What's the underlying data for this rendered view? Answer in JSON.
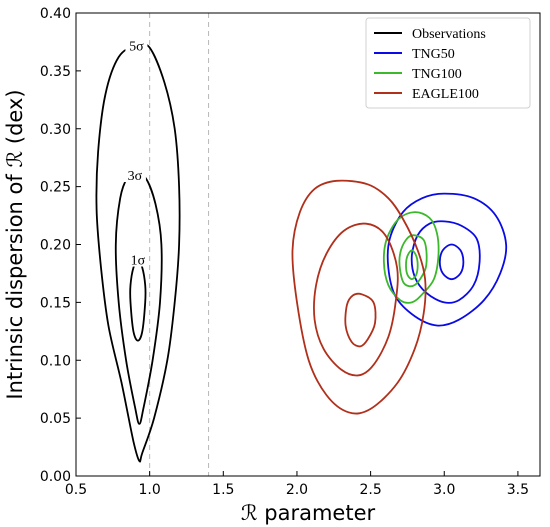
{
  "chart_data": {
    "type": "contour",
    "xlabel": "ℛ parameter",
    "ylabel": "Intrinsic dispersion of ℛ (dex)",
    "xlim": [
      0.5,
      3.65
    ],
    "ylim": [
      0.0,
      0.4
    ],
    "xticks": [
      "0.5",
      "1.0",
      "1.5",
      "2.0",
      "2.5",
      "3.0",
      "3.5"
    ],
    "yticks": [
      "0.00",
      "0.05",
      "0.10",
      "0.15",
      "0.20",
      "0.25",
      "0.30",
      "0.35",
      "0.40"
    ],
    "grid": false,
    "legend_position": "top-right",
    "reference_lines_x": [
      1.0,
      1.4
    ],
    "series": [
      {
        "name": "Observations",
        "color": "#000000",
        "contours": [
          {
            "level": "1σ",
            "label": "1σ",
            "center": [
              0.92,
              0.152
            ],
            "points": [
              [
                0.92,
                0.187
              ],
              [
                0.95,
                0.18
              ],
              [
                0.97,
                0.165
              ],
              [
                0.97,
                0.15
              ],
              [
                0.95,
                0.125
              ],
              [
                0.92,
                0.117
              ],
              [
                0.89,
                0.125
              ],
              [
                0.87,
                0.15
              ],
              [
                0.87,
                0.165
              ],
              [
                0.89,
                0.18
              ]
            ]
          },
          {
            "level": "3σ",
            "label": "3σ",
            "center": [
              0.93,
              0.167
            ],
            "points": [
              [
                0.9,
                0.26
              ],
              [
                0.97,
                0.258
              ],
              [
                1.04,
                0.235
              ],
              [
                1.08,
                0.2
              ],
              [
                1.07,
                0.15
              ],
              [
                1.02,
                0.1
              ],
              [
                0.96,
                0.06
              ],
              [
                0.93,
                0.045
              ],
              [
                0.9,
                0.06
              ],
              [
                0.84,
                0.1
              ],
              [
                0.79,
                0.15
              ],
              [
                0.77,
                0.2
              ],
              [
                0.8,
                0.24
              ],
              [
                0.85,
                0.258
              ]
            ]
          },
          {
            "level": "5σ",
            "label": "5σ",
            "center": [
              0.94,
              0.2
            ],
            "points": [
              [
                0.91,
                0.372
              ],
              [
                1.0,
                0.37
              ],
              [
                1.1,
                0.34
              ],
              [
                1.17,
                0.3
              ],
              [
                1.2,
                0.25
              ],
              [
                1.2,
                0.2
              ],
              [
                1.17,
                0.15
              ],
              [
                1.12,
                0.1
              ],
              [
                1.03,
                0.05
              ],
              [
                0.95,
                0.02
              ],
              [
                0.93,
                0.013
              ],
              [
                0.89,
                0.03
              ],
              [
                0.81,
                0.08
              ],
              [
                0.72,
                0.13
              ],
              [
                0.67,
                0.18
              ],
              [
                0.64,
                0.23
              ],
              [
                0.65,
                0.28
              ],
              [
                0.7,
                0.33
              ],
              [
                0.79,
                0.362
              ]
            ]
          }
        ]
      },
      {
        "name": "TNG50",
        "color": "#0a0ae6",
        "contours": [
          {
            "level": "1σ",
            "points": [
              [
                3.05,
                0.2
              ],
              [
                3.11,
                0.195
              ],
              [
                3.13,
                0.185
              ],
              [
                3.11,
                0.175
              ],
              [
                3.05,
                0.17
              ],
              [
                2.99,
                0.175
              ],
              [
                2.97,
                0.185
              ],
              [
                2.99,
                0.195
              ]
            ]
          },
          {
            "level": "3σ",
            "points": [
              [
                3.0,
                0.22
              ],
              [
                3.12,
                0.216
              ],
              [
                3.22,
                0.205
              ],
              [
                3.24,
                0.185
              ],
              [
                3.2,
                0.165
              ],
              [
                3.1,
                0.152
              ],
              [
                3.0,
                0.15
              ],
              [
                2.88,
                0.158
              ],
              [
                2.8,
                0.172
              ],
              [
                2.78,
                0.19
              ],
              [
                2.82,
                0.208
              ],
              [
                2.9,
                0.218
              ]
            ]
          },
          {
            "level": "5σ",
            "points": [
              [
                3.0,
                0.244
              ],
              [
                3.2,
                0.24
              ],
              [
                3.35,
                0.225
              ],
              [
                3.42,
                0.2
              ],
              [
                3.38,
                0.175
              ],
              [
                3.27,
                0.152
              ],
              [
                3.1,
                0.135
              ],
              [
                2.95,
                0.13
              ],
              [
                2.8,
                0.138
              ],
              [
                2.67,
                0.155
              ],
              [
                2.62,
                0.18
              ],
              [
                2.63,
                0.205
              ],
              [
                2.72,
                0.228
              ],
              [
                2.85,
                0.24
              ]
            ]
          }
        ]
      },
      {
        "name": "TNG100",
        "color": "#3cb82c",
        "contours": [
          {
            "level": "1σ",
            "points": [
              [
                2.78,
                0.195
              ],
              [
                2.81,
                0.19
              ],
              [
                2.82,
                0.182
              ],
              [
                2.81,
                0.174
              ],
              [
                2.78,
                0.17
              ],
              [
                2.75,
                0.174
              ],
              [
                2.74,
                0.182
              ],
              [
                2.75,
                0.19
              ]
            ]
          },
          {
            "level": "3σ",
            "points": [
              [
                2.79,
                0.208
              ],
              [
                2.86,
                0.204
              ],
              [
                2.88,
                0.192
              ],
              [
                2.87,
                0.178
              ],
              [
                2.8,
                0.165
              ],
              [
                2.73,
                0.166
              ],
              [
                2.7,
                0.178
              ],
              [
                2.7,
                0.192
              ],
              [
                2.74,
                0.204
              ]
            ]
          },
          {
            "level": "5σ",
            "points": [
              [
                2.8,
                0.228
              ],
              [
                2.9,
                0.223
              ],
              [
                2.95,
                0.21
              ],
              [
                2.96,
                0.19
              ],
              [
                2.93,
                0.17
              ],
              [
                2.85,
                0.157
              ],
              [
                2.78,
                0.15
              ],
              [
                2.7,
                0.152
              ],
              [
                2.62,
                0.165
              ],
              [
                2.59,
                0.185
              ],
              [
                2.61,
                0.205
              ],
              [
                2.69,
                0.222
              ]
            ]
          }
        ]
      },
      {
        "name": "EAGLE100",
        "color": "#b0301c",
        "contours": [
          {
            "level": "1σ",
            "points": [
              [
                2.44,
                0.157
              ],
              [
                2.52,
                0.15
              ],
              [
                2.53,
                0.132
              ],
              [
                2.48,
                0.118
              ],
              [
                2.43,
                0.112
              ],
              [
                2.37,
                0.116
              ],
              [
                2.33,
                0.13
              ],
              [
                2.34,
                0.148
              ],
              [
                2.38,
                0.156
              ]
            ]
          },
          {
            "level": "3σ",
            "points": [
              [
                2.47,
                0.218
              ],
              [
                2.6,
                0.208
              ],
              [
                2.68,
                0.18
              ],
              [
                2.67,
                0.15
              ],
              [
                2.62,
                0.12
              ],
              [
                2.52,
                0.096
              ],
              [
                2.42,
                0.087
              ],
              [
                2.3,
                0.092
              ],
              [
                2.18,
                0.11
              ],
              [
                2.12,
                0.135
              ],
              [
                2.13,
                0.165
              ],
              [
                2.2,
                0.192
              ],
              [
                2.32,
                0.212
              ]
            ]
          },
          {
            "level": "5σ",
            "points": [
              [
                2.27,
                0.255
              ],
              [
                2.48,
                0.252
              ],
              [
                2.62,
                0.24
              ],
              [
                2.72,
                0.222
              ],
              [
                2.82,
                0.195
              ],
              [
                2.87,
                0.17
              ],
              [
                2.86,
                0.14
              ],
              [
                2.8,
                0.11
              ],
              [
                2.68,
                0.08
              ],
              [
                2.5,
                0.058
              ],
              [
                2.35,
                0.055
              ],
              [
                2.2,
                0.07
              ],
              [
                2.08,
                0.1
              ],
              [
                2.0,
                0.15
              ],
              [
                1.97,
                0.195
              ],
              [
                2.02,
                0.228
              ],
              [
                2.12,
                0.248
              ]
            ]
          }
        ]
      }
    ]
  }
}
